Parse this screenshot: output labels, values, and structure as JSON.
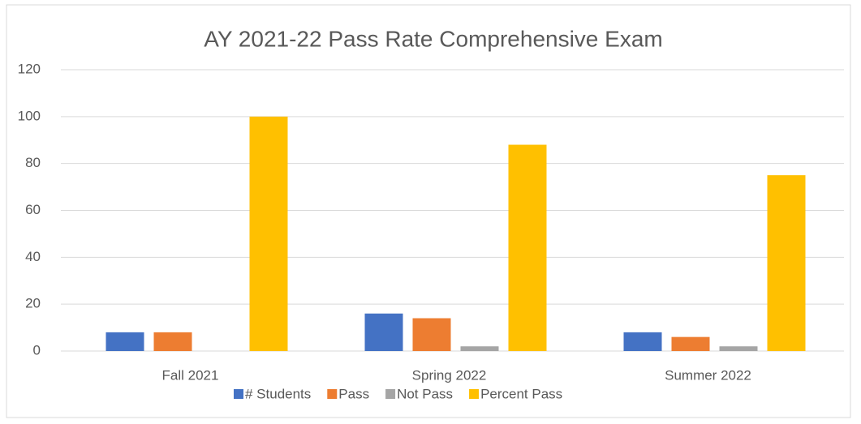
{
  "chart_data": {
    "type": "bar",
    "title": "AY 2021-22 Pass Rate Comprehensive Exam",
    "categories": [
      "Fall 2021",
      "Spring 2022",
      "Summer 2022"
    ],
    "series": [
      {
        "name": "# Students",
        "color": "#4472c4",
        "values": [
          8,
          16,
          8
        ]
      },
      {
        "name": "Pass",
        "color": "#ed7d31",
        "values": [
          8,
          14,
          6
        ]
      },
      {
        "name": "Not Pass",
        "color": "#a5a5a5",
        "values": [
          0,
          2,
          2
        ]
      },
      {
        "name": "Percent Pass",
        "color": "#ffc000",
        "values": [
          100,
          88,
          75
        ]
      }
    ],
    "ylim": [
      0,
      120
    ],
    "yticks": [
      0,
      20,
      40,
      60,
      80,
      100,
      120
    ],
    "grid": true,
    "legend": "bottom"
  }
}
